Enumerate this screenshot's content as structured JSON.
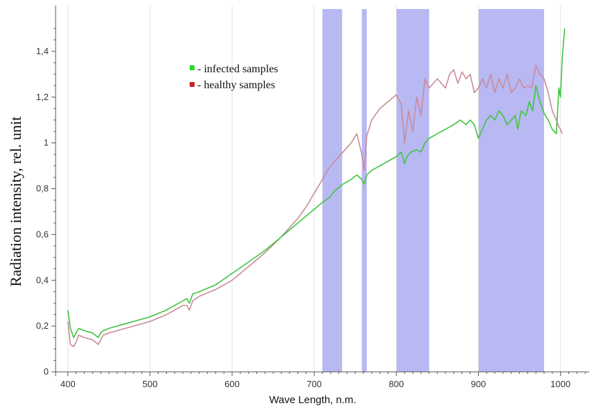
{
  "chart_data": {
    "type": "line",
    "xlabel": "Wave Length, n.m.",
    "ylabel": "Radiation intensity, rel. unit",
    "xlim": [
      385,
      1035
    ],
    "ylim": [
      0,
      1.6
    ],
    "x_ticks": [
      400,
      500,
      600,
      700,
      800,
      900,
      1000
    ],
    "y_ticks": [
      {
        "value": 0,
        "label": "0"
      },
      {
        "value": 0.2,
        "label": "0,2"
      },
      {
        "value": 0.4,
        "label": "0,4"
      },
      {
        "value": 0.6,
        "label": "0,6"
      },
      {
        "value": 0.8,
        "label": "0,8"
      },
      {
        "value": 1.0,
        "label": "1"
      },
      {
        "value": 1.2,
        "label": "1,2"
      },
      {
        "value": 1.4,
        "label": "1,4"
      }
    ],
    "grid": "vertical",
    "legend_position": "top-left",
    "highlight_bands": [
      {
        "from": 710,
        "to": 734,
        "color": "#b8b8f2"
      },
      {
        "from": 758,
        "to": 764,
        "color": "#b8b8f2"
      },
      {
        "from": 800,
        "to": 840,
        "color": "#b8b8f2"
      },
      {
        "from": 900,
        "to": 980,
        "color": "#b8b8f2"
      }
    ],
    "series": [
      {
        "name": "infected samples",
        "legend_label": "- infected samples",
        "color": "#3ec43e",
        "points": [
          [
            400,
            0.27
          ],
          [
            403,
            0.19
          ],
          [
            407,
            0.15
          ],
          [
            410,
            0.17
          ],
          [
            413,
            0.19
          ],
          [
            420,
            0.18
          ],
          [
            430,
            0.17
          ],
          [
            437,
            0.15
          ],
          [
            440,
            0.17
          ],
          [
            443,
            0.18
          ],
          [
            450,
            0.19
          ],
          [
            470,
            0.21
          ],
          [
            500,
            0.24
          ],
          [
            520,
            0.27
          ],
          [
            540,
            0.31
          ],
          [
            545,
            0.32
          ],
          [
            548,
            0.3
          ],
          [
            552,
            0.34
          ],
          [
            560,
            0.35
          ],
          [
            580,
            0.38
          ],
          [
            600,
            0.43
          ],
          [
            620,
            0.48
          ],
          [
            640,
            0.53
          ],
          [
            660,
            0.59
          ],
          [
            680,
            0.65
          ],
          [
            690,
            0.68
          ],
          [
            700,
            0.71
          ],
          [
            710,
            0.74
          ],
          [
            718,
            0.76
          ],
          [
            725,
            0.79
          ],
          [
            735,
            0.82
          ],
          [
            745,
            0.84
          ],
          [
            752,
            0.86
          ],
          [
            758,
            0.84
          ],
          [
            761,
            0.82
          ],
          [
            764,
            0.86
          ],
          [
            770,
            0.88
          ],
          [
            780,
            0.9
          ],
          [
            790,
            0.92
          ],
          [
            800,
            0.94
          ],
          [
            806,
            0.96
          ],
          [
            810,
            0.91
          ],
          [
            813,
            0.94
          ],
          [
            818,
            0.96
          ],
          [
            825,
            0.97
          ],
          [
            830,
            0.96
          ],
          [
            835,
            1.0
          ],
          [
            840,
            1.02
          ],
          [
            850,
            1.04
          ],
          [
            860,
            1.06
          ],
          [
            870,
            1.08
          ],
          [
            878,
            1.1
          ],
          [
            885,
            1.08
          ],
          [
            890,
            1.1
          ],
          [
            895,
            1.08
          ],
          [
            900,
            1.02
          ],
          [
            905,
            1.06
          ],
          [
            910,
            1.1
          ],
          [
            915,
            1.12
          ],
          [
            920,
            1.1
          ],
          [
            925,
            1.14
          ],
          [
            930,
            1.12
          ],
          [
            935,
            1.08
          ],
          [
            940,
            1.1
          ],
          [
            945,
            1.12
          ],
          [
            948,
            1.06
          ],
          [
            952,
            1.14
          ],
          [
            958,
            1.12
          ],
          [
            962,
            1.18
          ],
          [
            966,
            1.14
          ],
          [
            970,
            1.25
          ],
          [
            975,
            1.18
          ],
          [
            980,
            1.13
          ],
          [
            985,
            1.1
          ],
          [
            990,
            1.06
          ],
          [
            995,
            1.04
          ],
          [
            998,
            1.24
          ],
          [
            1000,
            1.2
          ],
          [
            1002,
            1.36
          ],
          [
            1005,
            1.5
          ]
        ]
      },
      {
        "name": "healthy samples",
        "legend_label": "- healthy samples",
        "color": "#c98a9a",
        "points": [
          [
            400,
            0.22
          ],
          [
            403,
            0.12
          ],
          [
            407,
            0.11
          ],
          [
            410,
            0.13
          ],
          [
            413,
            0.16
          ],
          [
            420,
            0.15
          ],
          [
            430,
            0.14
          ],
          [
            437,
            0.12
          ],
          [
            440,
            0.14
          ],
          [
            443,
            0.16
          ],
          [
            450,
            0.17
          ],
          [
            470,
            0.19
          ],
          [
            500,
            0.22
          ],
          [
            520,
            0.25
          ],
          [
            540,
            0.29
          ],
          [
            545,
            0.29
          ],
          [
            548,
            0.27
          ],
          [
            552,
            0.31
          ],
          [
            560,
            0.33
          ],
          [
            580,
            0.36
          ],
          [
            600,
            0.4
          ],
          [
            620,
            0.46
          ],
          [
            640,
            0.52
          ],
          [
            660,
            0.59
          ],
          [
            680,
            0.67
          ],
          [
            690,
            0.72
          ],
          [
            700,
            0.78
          ],
          [
            710,
            0.84
          ],
          [
            718,
            0.89
          ],
          [
            725,
            0.92
          ],
          [
            735,
            0.96
          ],
          [
            745,
            1.0
          ],
          [
            752,
            1.04
          ],
          [
            758,
            0.95
          ],
          [
            761,
            0.88
          ],
          [
            764,
            1.03
          ],
          [
            770,
            1.1
          ],
          [
            780,
            1.15
          ],
          [
            790,
            1.18
          ],
          [
            800,
            1.21
          ],
          [
            806,
            1.17
          ],
          [
            810,
            1.0
          ],
          [
            815,
            1.14
          ],
          [
            820,
            1.05
          ],
          [
            825,
            1.2
          ],
          [
            830,
            1.12
          ],
          [
            835,
            1.28
          ],
          [
            840,
            1.24
          ],
          [
            850,
            1.28
          ],
          [
            860,
            1.24
          ],
          [
            865,
            1.3
          ],
          [
            870,
            1.32
          ],
          [
            875,
            1.26
          ],
          [
            880,
            1.31
          ],
          [
            885,
            1.28
          ],
          [
            890,
            1.3
          ],
          [
            895,
            1.22
          ],
          [
            900,
            1.24
          ],
          [
            905,
            1.28
          ],
          [
            910,
            1.24
          ],
          [
            915,
            1.3
          ],
          [
            920,
            1.22
          ],
          [
            925,
            1.28
          ],
          [
            930,
            1.24
          ],
          [
            935,
            1.3
          ],
          [
            940,
            1.22
          ],
          [
            945,
            1.24
          ],
          [
            950,
            1.28
          ],
          [
            955,
            1.24
          ],
          [
            960,
            1.25
          ],
          [
            965,
            1.24
          ],
          [
            970,
            1.34
          ],
          [
            975,
            1.3
          ],
          [
            980,
            1.28
          ],
          [
            985,
            1.22
          ],
          [
            990,
            1.14
          ],
          [
            995,
            1.1
          ],
          [
            998,
            1.07
          ],
          [
            1000,
            1.06
          ],
          [
            1002,
            1.04
          ]
        ]
      }
    ]
  }
}
